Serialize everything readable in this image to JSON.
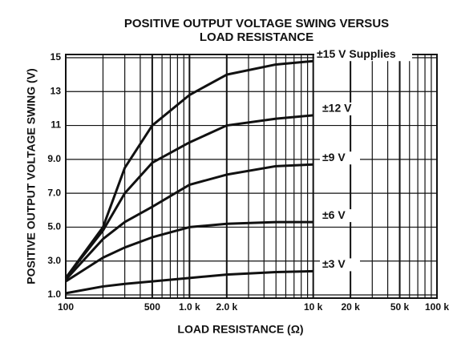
{
  "chart_data": {
    "type": "line",
    "title": [
      "POSITIVE OUTPUT VOLTAGE SWING VERSUS",
      "LOAD RESISTANCE"
    ],
    "x_label": "LOAD RESISTANCE (Ω)",
    "y_label": "POSITIVE OUTPUT VOLTAGE SWING (V)",
    "x_scale": "log",
    "xlim": [
      100,
      100000
    ],
    "xticks": [
      100,
      500,
      {
        "value": 1000,
        "label": "1.0 k"
      },
      {
        "value": 2000,
        "label": "2.0 k"
      },
      {
        "value": 10000,
        "label": "10 k"
      },
      {
        "value": 20000,
        "label": "20 k"
      },
      {
        "value": 50000,
        "label": "50 k"
      },
      {
        "value": 100000,
        "label": "100 k"
      }
    ],
    "ylim": [
      1,
      15
    ],
    "yticks": [
      {
        "value": 1,
        "label": "1.0"
      },
      {
        "value": 3,
        "label": "3.0"
      },
      {
        "value": 5,
        "label": "5.0"
      },
      {
        "value": 7,
        "label": "7.0"
      },
      {
        "value": 9,
        "label": "9.0"
      },
      11,
      13,
      15
    ],
    "grid": true,
    "x": [
      100,
      200,
      300,
      500,
      1000,
      2000,
      5000,
      10000
    ],
    "series": [
      {
        "name": "±15 V Supplies",
        "color": "#111111",
        "values": [
          2.0,
          5.0,
          8.5,
          11.0,
          12.8,
          14.0,
          14.6,
          14.8
        ]
      },
      {
        "name": "±12 V",
        "color": "#111111",
        "values": [
          2.0,
          4.8,
          7.0,
          8.8,
          10.0,
          11.0,
          11.4,
          11.6
        ]
      },
      {
        "name": "±9 V",
        "color": "#111111",
        "values": [
          1.9,
          4.3,
          5.3,
          6.2,
          7.5,
          8.1,
          8.6,
          8.7
        ]
      },
      {
        "name": "±6 V",
        "color": "#111111",
        "values": [
          1.8,
          3.2,
          3.8,
          4.4,
          5.0,
          5.2,
          5.3,
          5.3
        ]
      },
      {
        "name": "±3 V",
        "color": "#111111",
        "values": [
          1.1,
          1.5,
          1.65,
          1.8,
          2.0,
          2.2,
          2.35,
          2.4
        ]
      }
    ]
  }
}
